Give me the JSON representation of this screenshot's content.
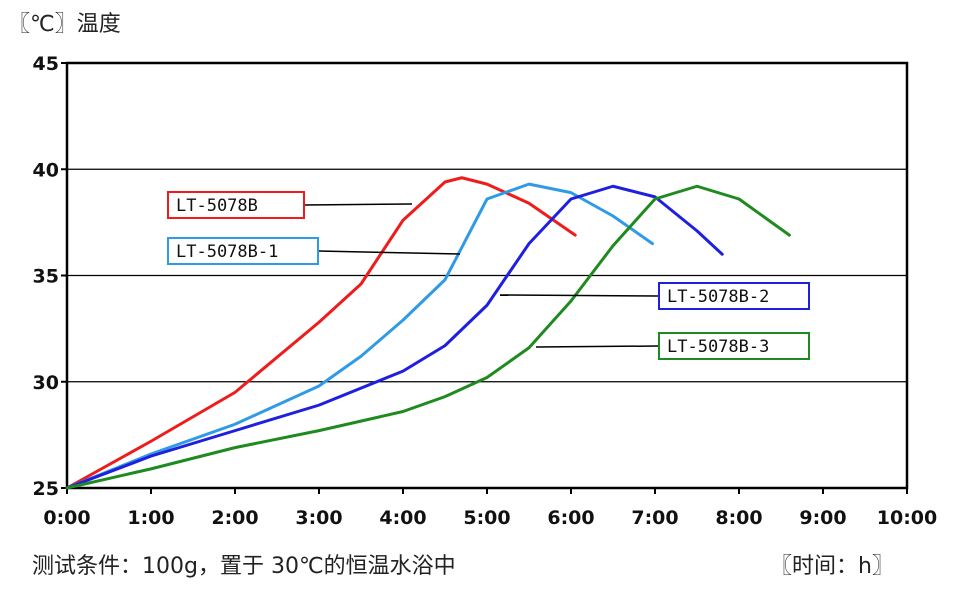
{
  "header": {
    "y_unit_label": "〖℃〗温度"
  },
  "footer": {
    "condition": "测试条件：100g，置于 30℃的恒温水浴中",
    "x_unit_label": "〖时间：h〗"
  },
  "chart_data": {
    "type": "line",
    "ylabel": "〖℃〗温度",
    "xlabel": "〖时间：h〗",
    "x_ticks": [
      "0:00",
      "1:00",
      "2:00",
      "3:00",
      "4:00",
      "5:00",
      "6:00",
      "7:00",
      "8:00",
      "9:00",
      "10:00"
    ],
    "y_ticks": [
      25,
      30,
      35,
      40,
      45
    ],
    "xlim": [
      0,
      10
    ],
    "ylim": [
      25,
      45
    ],
    "grid": "horizontal",
    "series": [
      {
        "name": "LT-5078B",
        "color": "#ee1c1c",
        "x": [
          0,
          1,
          2,
          3,
          3.5,
          4,
          4.5,
          4.7,
          5,
          5.5,
          6.05
        ],
        "y": [
          25,
          27.2,
          29.5,
          32.8,
          34.6,
          37.6,
          39.4,
          39.6,
          39.3,
          38.4,
          36.9
        ]
      },
      {
        "name": "LT-5078B-1",
        "color": "#2f9ae6",
        "x": [
          0,
          1,
          2,
          3,
          3.5,
          4,
          4.5,
          5,
          5.5,
          6,
          6.5,
          6.97
        ],
        "y": [
          25,
          26.6,
          28,
          29.8,
          31.2,
          32.9,
          34.8,
          38.6,
          39.3,
          38.9,
          37.8,
          36.5
        ]
      },
      {
        "name": "LT-5078B-2",
        "color": "#1f1fe0",
        "x": [
          0,
          1,
          2,
          3,
          4,
          4.5,
          5,
          5.5,
          6,
          6.5,
          7,
          7.5,
          7.8
        ],
        "y": [
          25,
          26.5,
          27.7,
          28.9,
          30.5,
          31.7,
          33.6,
          36.5,
          38.6,
          39.2,
          38.7,
          37.1,
          36
        ]
      },
      {
        "name": "LT-5078B-3",
        "color": "#1f8a1f",
        "x": [
          0,
          1,
          2,
          3,
          4,
          4.5,
          5,
          5.5,
          6,
          6.5,
          7,
          7.5,
          8,
          8.6
        ],
        "y": [
          25,
          25.9,
          26.9,
          27.7,
          28.6,
          29.3,
          30.2,
          31.6,
          33.8,
          36.4,
          38.6,
          39.2,
          38.6,
          36.9
        ]
      }
    ],
    "legend_labels": [
      {
        "text": "LT-5078B",
        "color": "#ee1c1c"
      },
      {
        "text": "LT-5078B-1",
        "color": "#2f9ae6"
      },
      {
        "text": "LT-5078B-2",
        "color": "#1f1fe0"
      },
      {
        "text": "LT-5078B-3",
        "color": "#1f8a1f"
      }
    ]
  }
}
